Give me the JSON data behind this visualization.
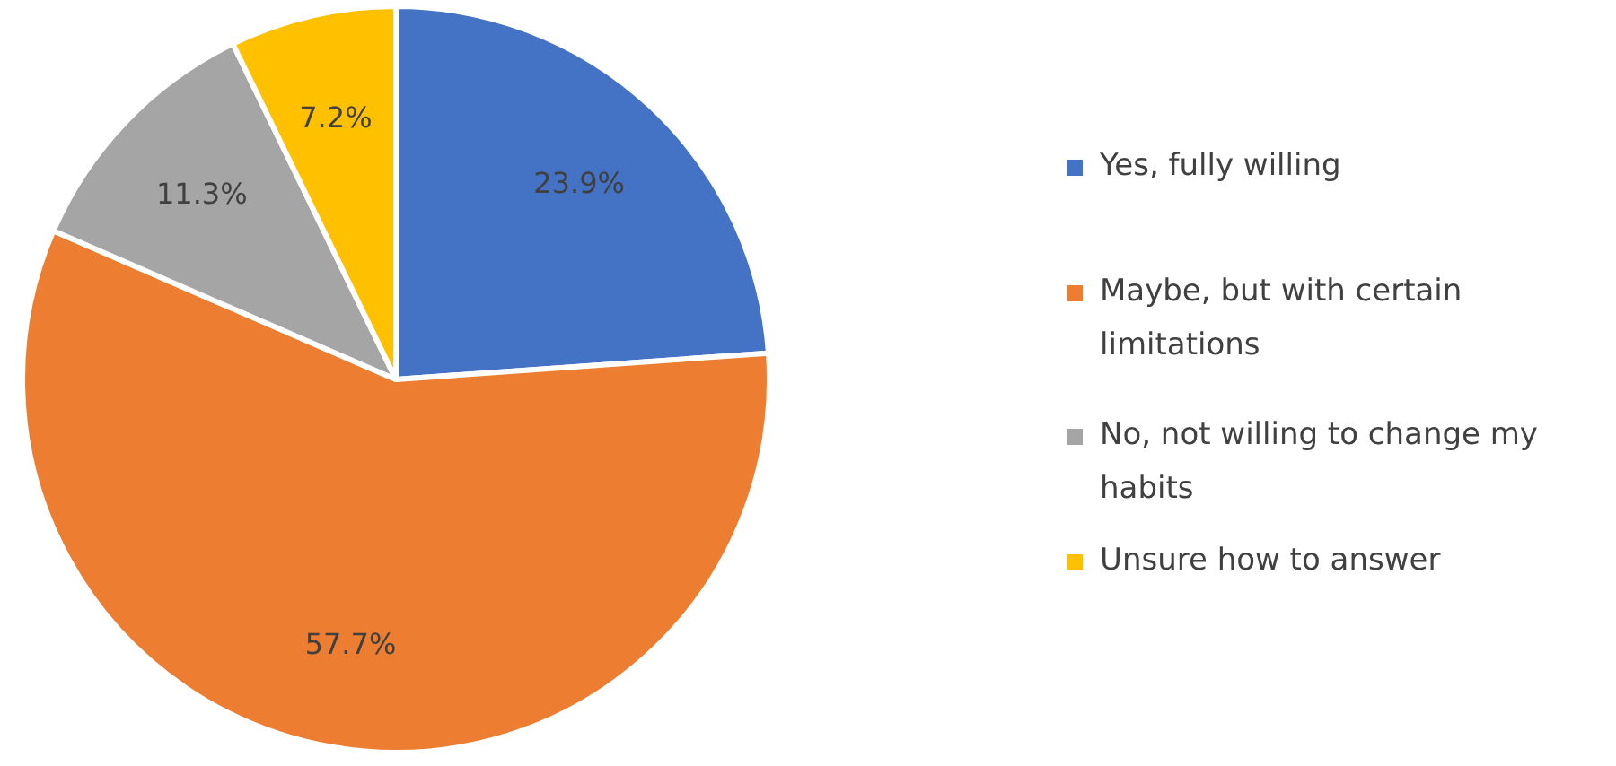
{
  "chart_data": {
    "type": "pie",
    "categories": [
      "Yes, fully willing",
      "Maybe, but with certain limitations",
      "No, not willing to change my habits",
      "Unsure how to answer"
    ],
    "values": [
      23.9,
      57.7,
      11.3,
      7.2
    ],
    "colors": [
      "#4472c4",
      "#ed7d31",
      "#a5a5a5",
      "#ffc000"
    ],
    "value_labels": [
      "23.9%",
      "57.7%",
      "11.3%",
      "7.2%"
    ],
    "legend": "right"
  }
}
